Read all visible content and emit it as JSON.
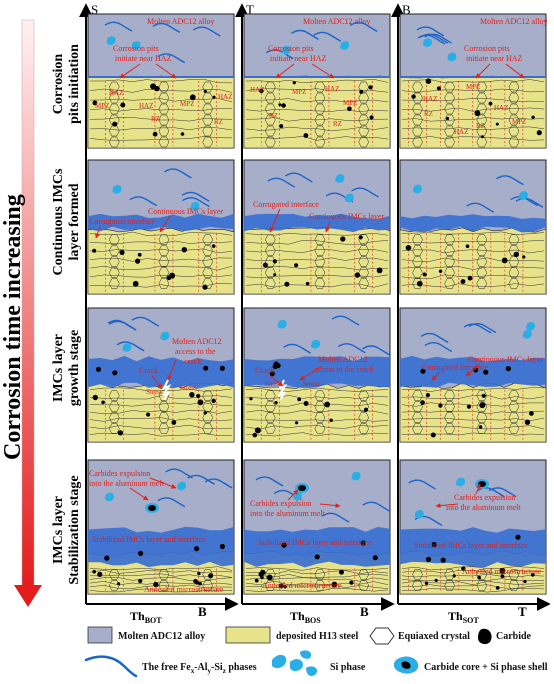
{
  "main_axis": {
    "label": "Corrosion time increasing",
    "arrow_color_top": "#ffe6e6",
    "arrow_color_bottom": "#e31b1b"
  },
  "stages": [
    {
      "line1": "Corrosion",
      "line2": "pits initiation"
    },
    {
      "line1": "Continuous IMCs",
      "line2": "layer formed"
    },
    {
      "line1": "IMCs layer",
      "line2": "growth stage"
    },
    {
      "line1": "IMCs layer",
      "line2": "Stabilization stage"
    }
  ],
  "columns": [
    {
      "corner": "S",
      "bottom_label": "Th",
      "bottom_sub": "BOT",
      "bottom_axis": "B"
    },
    {
      "corner": "T",
      "bottom_label": "Th",
      "bottom_sub": "BOS",
      "bottom_axis": "B"
    },
    {
      "corner": "B",
      "bottom_label": "Th",
      "bottom_sub": "SOT",
      "bottom_axis": "T"
    }
  ],
  "annotations": {
    "molten_alloy": "Molten ADC12 alloy",
    "pits_line1": "Corrosion pits",
    "pits_line2": "initiate near HAZ",
    "haz": "HAZ",
    "mpz": "MPZ",
    "rz": "RZ",
    "corrugated": "Corrugated interface",
    "continuous_imcs": "Continuous IMCs layer",
    "molten_access_line1": "Molten ADC12",
    "molten_access_line2": "access to the",
    "molten_access_line3": "crack",
    "molten_access_b1": "Molten ADC12",
    "molten_access_b2": "access to the crack",
    "crack": "Crack",
    "stress": "Stress",
    "carbides_line1": "Carbides expulsion",
    "carbides_line2": "into the aluminum melt",
    "stabilized": "Stabilized IMCs layer and interface",
    "annealed": "Annealed microstructure"
  },
  "legend": {
    "molten": "Molten ADC12 alloy",
    "steel": "deposited H13 steel",
    "equiaxed": "Equiaxed crystal",
    "carbide": "Carbide",
    "free_phase_prefix": "The free Fe",
    "free_phase_x": "x",
    "free_phase_al": "-Al",
    "free_phase_y": "y",
    "free_phase_si": "-Si",
    "free_phase_z": "z",
    "free_phase_suffix": " phases",
    "si_phase": "Si phase",
    "carbide_core": "Carbide core + Si phase shell"
  },
  "colors": {
    "molten": "#a7aec9",
    "steel": "#e7e38a",
    "imc": "#3a6fd1",
    "annotation": "#e0201c",
    "si": "#29aee6"
  }
}
